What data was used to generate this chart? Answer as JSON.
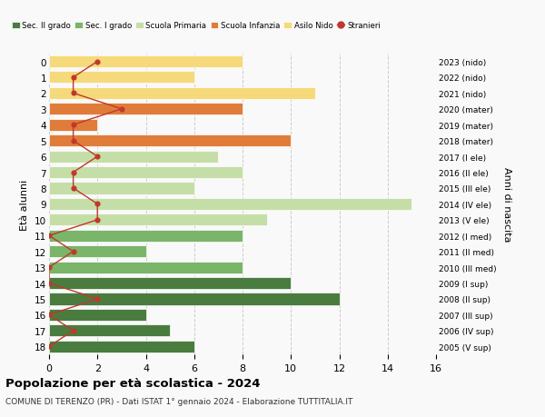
{
  "ages": [
    18,
    17,
    16,
    15,
    14,
    13,
    12,
    11,
    10,
    9,
    8,
    7,
    6,
    5,
    4,
    3,
    2,
    1,
    0
  ],
  "right_labels": [
    "2005 (V sup)",
    "2006 (IV sup)",
    "2007 (III sup)",
    "2008 (II sup)",
    "2009 (I sup)",
    "2010 (III med)",
    "2011 (II med)",
    "2012 (I med)",
    "2013 (V ele)",
    "2014 (IV ele)",
    "2015 (III ele)",
    "2016 (II ele)",
    "2017 (I ele)",
    "2018 (mater)",
    "2019 (mater)",
    "2020 (mater)",
    "2021 (nido)",
    "2022 (nido)",
    "2023 (nido)"
  ],
  "bar_values": [
    6,
    5,
    4,
    12,
    10,
    8,
    4,
    8,
    9,
    15,
    6,
    8,
    7,
    10,
    2,
    8,
    11,
    6,
    8
  ],
  "bar_colors": [
    "#4a7c40",
    "#4a7c40",
    "#4a7c40",
    "#4a7c40",
    "#4a7c40",
    "#7ab56a",
    "#7ab56a",
    "#7ab56a",
    "#c5dea8",
    "#c5dea8",
    "#c5dea8",
    "#c5dea8",
    "#c5dea8",
    "#e07c3a",
    "#e07c3a",
    "#e07c3a",
    "#f5d97a",
    "#f5d97a",
    "#f5d97a"
  ],
  "stranieri_values": [
    0,
    1,
    0,
    2,
    0,
    0,
    1,
    0,
    2,
    2,
    1,
    1,
    2,
    1,
    1,
    3,
    1,
    1,
    2
  ],
  "xlim": [
    0,
    16
  ],
  "xticks": [
    0,
    2,
    4,
    6,
    8,
    10,
    12,
    14,
    16
  ],
  "ylabel_right": "Anni di nascita",
  "title": "Popolazione per età scolastica - 2024",
  "subtitle": "COMUNE DI TERENZO (PR) - Dati ISTAT 1° gennaio 2024 - Elaborazione TUTTITALIA.IT",
  "legend_labels": [
    "Sec. II grado",
    "Sec. I grado",
    "Scuola Primaria",
    "Scuola Infanzia",
    "Asilo Nido",
    "Stranieri"
  ],
  "legend_colors": [
    "#4a7c40",
    "#7ab56a",
    "#c5dea8",
    "#e07c3a",
    "#f5d97a",
    "#c0392b"
  ],
  "stranieri_color": "#c0392b",
  "grid_color": "#cccccc",
  "bg_color": "#f9f9f9"
}
